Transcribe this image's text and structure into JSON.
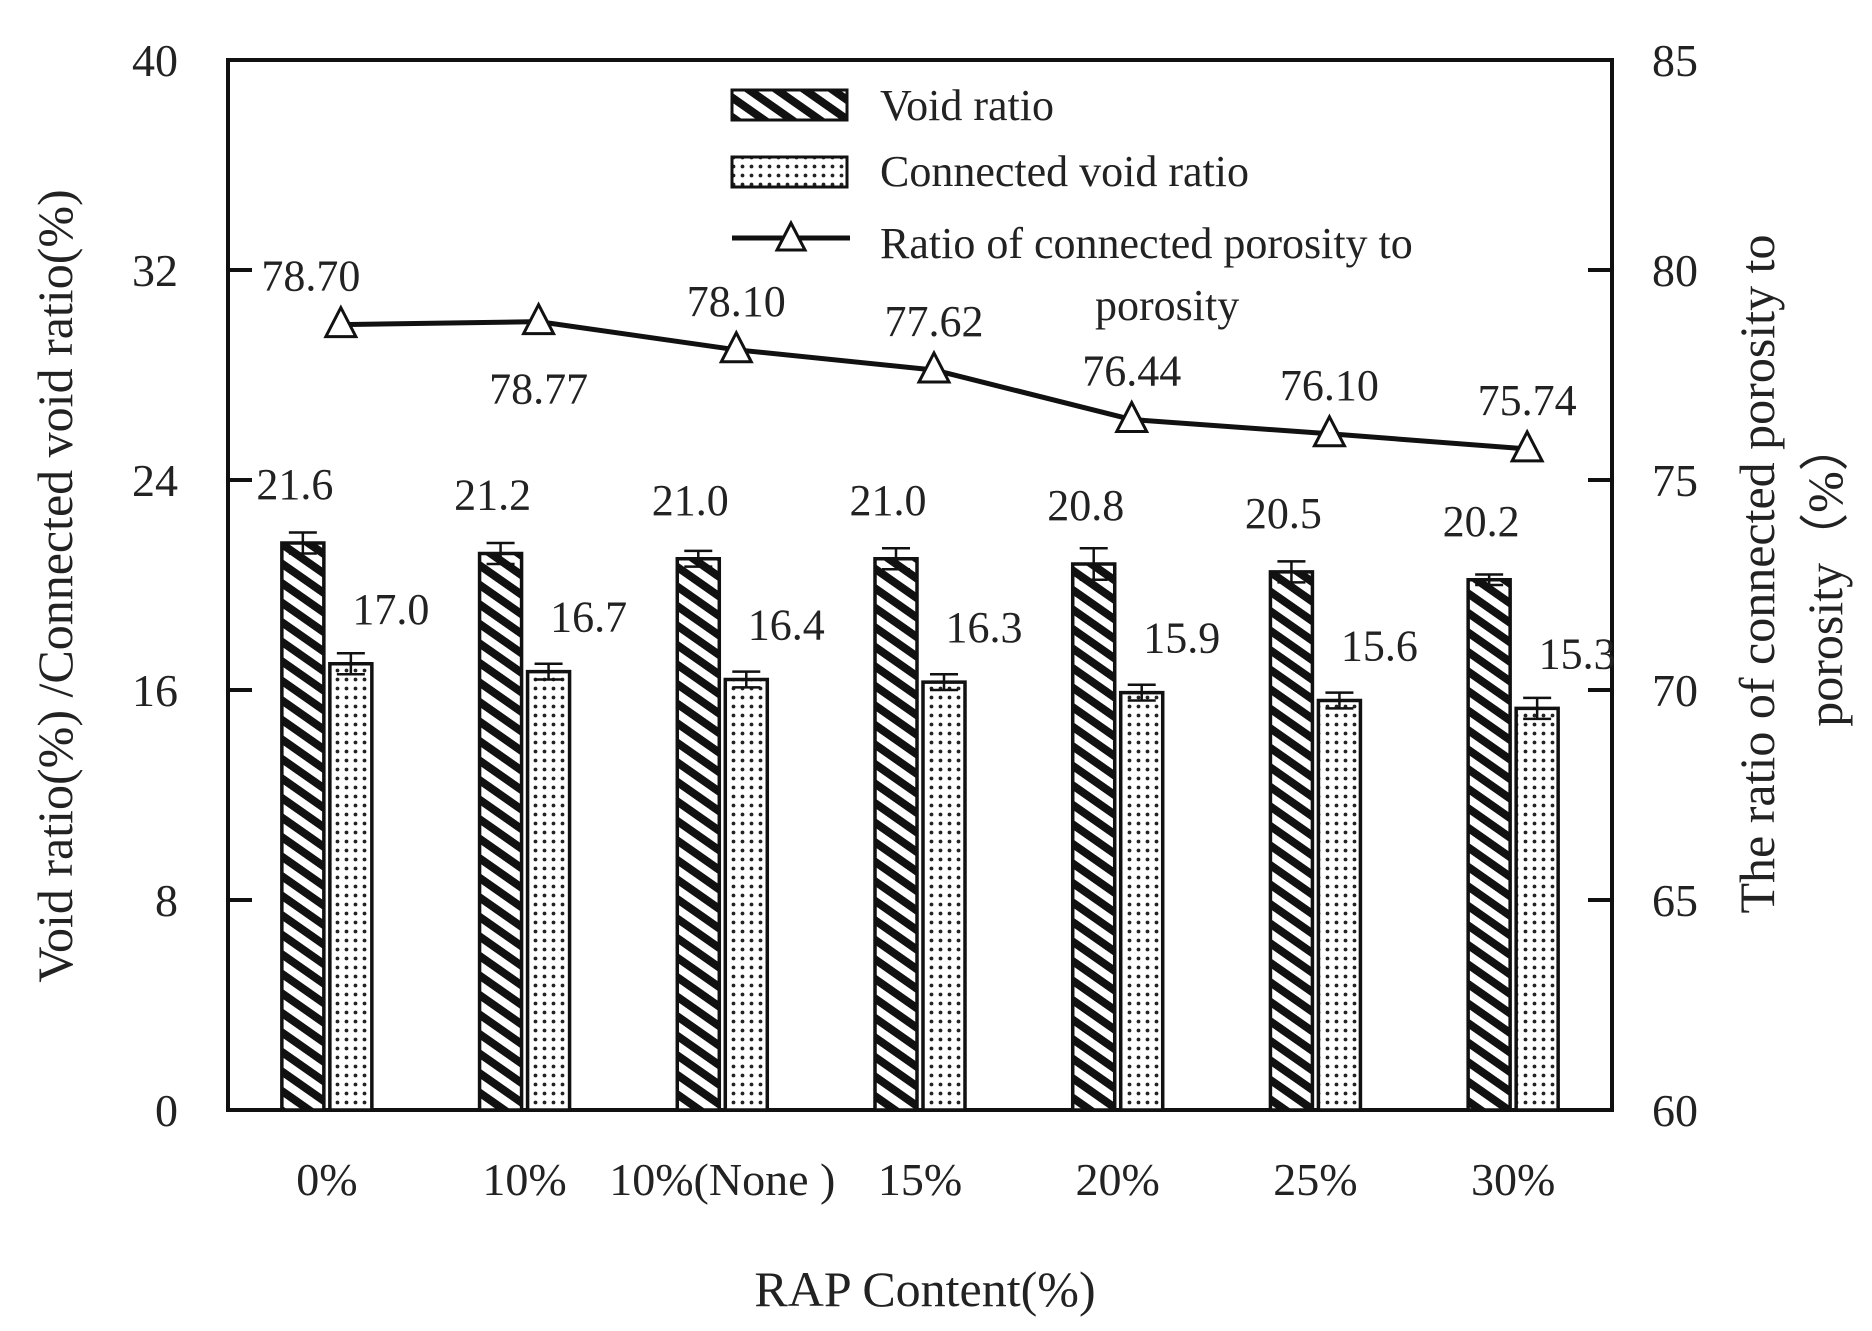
{
  "chart_data": {
    "type": "bar",
    "title": "",
    "xlabel": "RAP Content(%)",
    "ylabel": "Void ratio(%) /Connected void ratio(%)",
    "ylabel_right_line1": "The ratio of connected porosity to",
    "ylabel_right_line2": "porosity（%）",
    "ylim": [
      0,
      40
    ],
    "y_ticks": [
      0,
      8,
      16,
      24,
      32,
      40
    ],
    "ylim_right": [
      60,
      85
    ],
    "y_ticks_right": [
      60,
      65,
      70,
      75,
      80,
      85
    ],
    "categories": [
      "0%",
      "10%",
      "10%(None )",
      "15%",
      "20%",
      "25%",
      "30%"
    ],
    "series": [
      {
        "name": "Void ratio",
        "kind": "bar",
        "pattern": "hatch",
        "values": [
          21.6,
          21.2,
          21.0,
          21.0,
          20.8,
          20.5,
          20.2
        ],
        "labels": [
          "21.6",
          "21.2",
          "21.0",
          "21.0",
          "20.8",
          "20.5",
          "20.2"
        ],
        "errors": [
          0.4,
          0.4,
          0.3,
          0.4,
          0.6,
          0.4,
          0.2
        ]
      },
      {
        "name": "Connected void ratio",
        "kind": "bar",
        "pattern": "dots",
        "values": [
          17.0,
          16.7,
          16.4,
          16.3,
          15.9,
          15.6,
          15.3
        ],
        "labels": [
          "17.0",
          "16.7",
          "16.4",
          "16.3",
          "15.9",
          "15.6",
          "15.3"
        ],
        "errors": [
          0.4,
          0.3,
          0.3,
          0.3,
          0.3,
          0.3,
          0.4
        ]
      },
      {
        "name": "Ratio of connected porosity to porosity",
        "legend_line1": "Ratio of connected porosity to",
        "legend_line2": "porosity",
        "kind": "line",
        "axis": "right",
        "marker": "triangle",
        "values": [
          78.7,
          78.77,
          78.1,
          77.62,
          76.44,
          76.1,
          75.74
        ],
        "labels": [
          "78.70",
          "78.77",
          "78.10",
          "77.62",
          "76.44",
          "76.10",
          "75.74"
        ]
      }
    ],
    "legend_position": "top-center",
    "grid": false
  }
}
